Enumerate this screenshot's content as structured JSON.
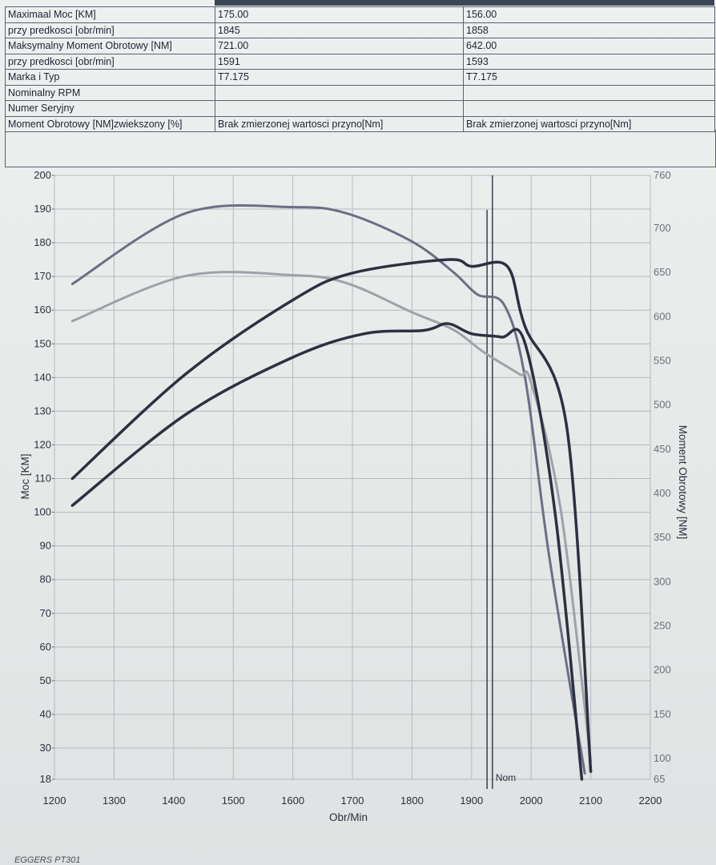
{
  "specs_table": {
    "rows": [
      {
        "label": "Maximaal Moc [KM]",
        "a": "175.00",
        "b": "156.00"
      },
      {
        "label": "przy predkosci [obr/min]",
        "a": "1845",
        "b": "1858"
      },
      {
        "label": "Maksymalny Moment Obrotowy [NM]",
        "a": "721.00",
        "b": "642.00"
      },
      {
        "label": "przy predkosci [obr/min]",
        "a": "1591",
        "b": "1593"
      },
      {
        "label": "Marka i Typ",
        "a": "T7.175",
        "b": "T7.175"
      },
      {
        "label": "Nominalny RPM",
        "a": "",
        "b": ""
      },
      {
        "label": "Numer Seryjny",
        "a": "",
        "b": ""
      },
      {
        "label": "Moment Obrotowy [NM]zwiekszony [%]",
        "a": "Brak zmierzonej wartosci przyno[Nm]",
        "b": "Brak zmierzonej wartosci przyno[Nm]"
      }
    ]
  },
  "chart_data": {
    "type": "line",
    "xlabel": "Obr/Min",
    "ylabel": "Moc [KM]",
    "y2label": "Moment Obrotowy [NM]",
    "xlim": [
      1200,
      2200
    ],
    "x_ticks": [
      1200,
      1300,
      1400,
      1500,
      1600,
      1700,
      1800,
      1900,
      2000,
      2100,
      2200
    ],
    "y_ticks": [
      18,
      30,
      40,
      50,
      60,
      70,
      80,
      90,
      100,
      110,
      120,
      130,
      140,
      150,
      160,
      170,
      180,
      190,
      200
    ],
    "y2_ticks": [
      65,
      100,
      150,
      200,
      250,
      300,
      350,
      400,
      450,
      500,
      550,
      600,
      650,
      700,
      760
    ],
    "grid": true,
    "nominal_label": "Nom",
    "nominal_x": [
      1930,
      1935
    ],
    "series": [
      {
        "axis": "y2",
        "color": "#6b6f82",
        "width": 3,
        "x": [
          1230,
          1420,
          1600,
          1690,
          1800,
          1870,
          1910,
          1955,
          1990,
          2030,
          2090
        ],
        "y": [
          637,
          717,
          724,
          717,
          685,
          650,
          625,
          613,
          530,
          330,
          75
        ]
      },
      {
        "axis": "y2",
        "color": "#9ea2a8",
        "width": 3,
        "x": [
          1230,
          1420,
          1600,
          1690,
          1800,
          1870,
          1920,
          1980,
          2000,
          2050,
          2100
        ],
        "y": [
          595,
          646,
          647,
          638,
          605,
          585,
          560,
          535,
          525,
          380,
          95
        ]
      },
      {
        "axis": "y",
        "color": "#2c3140",
        "width": 3.5,
        "x": [
          1230,
          1420,
          1600,
          1700,
          1860,
          1900,
          1960,
          1990,
          2060,
          2100
        ],
        "y": [
          110,
          141,
          163,
          171,
          175,
          173,
          173,
          155,
          125,
          21
        ]
      },
      {
        "axis": "y",
        "color": "#2c3140",
        "width": 3.5,
        "x": [
          1230,
          1420,
          1600,
          1720,
          1820,
          1860,
          1900,
          1950,
          1990,
          2040,
          2085
        ],
        "y": [
          102,
          129,
          146,
          153,
          154,
          156,
          153,
          152,
          150,
          100,
          18
        ]
      }
    ]
  },
  "footer": {
    "text": "EGGERS PT301"
  }
}
